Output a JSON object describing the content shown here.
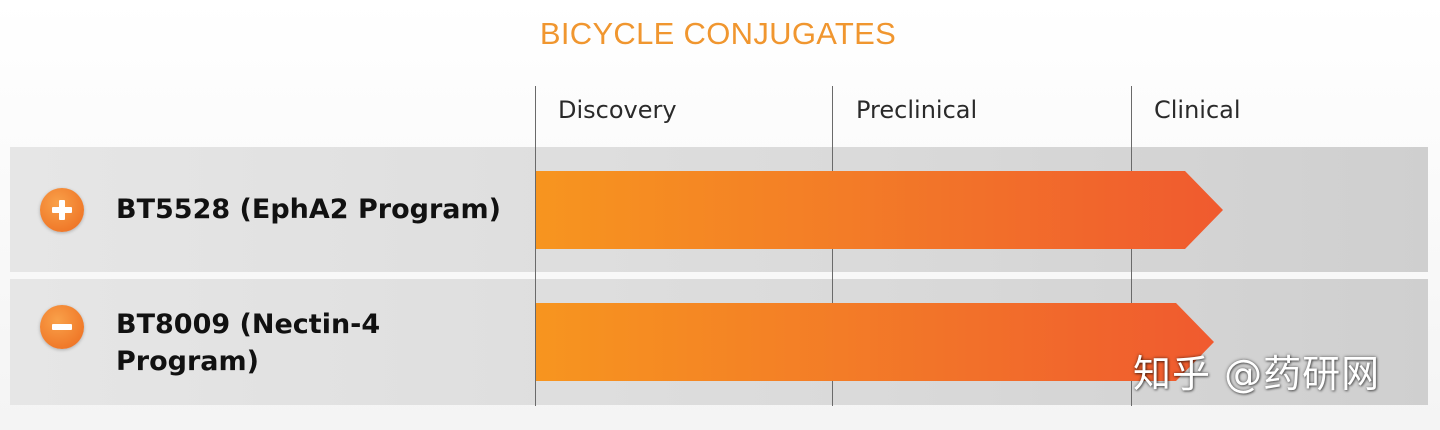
{
  "title": "BICYCLE CONJUGATES",
  "stages": [
    "Discovery",
    "Preclinical",
    "Clinical"
  ],
  "programs": [
    {
      "name": "BT5528 (EphA2 Program)",
      "name_lines": [
        "BT5528 (EphA2 Program)"
      ],
      "expanded": false,
      "toggle_icon": "plus-icon",
      "stage_reached": "Clinical",
      "progress_fraction": 0.77
    },
    {
      "name": "BT8009 (Nectin-4 Program)",
      "name_lines": [
        "BT8009 (Nectin-4",
        "Program)"
      ],
      "expanded": true,
      "toggle_icon": "minus-icon",
      "stage_reached": "Clinical",
      "progress_fraction": 0.76
    }
  ],
  "watermark": "知乎 @药研网",
  "colors": {
    "title": "#f0962f",
    "arrow_start": "#f7951f",
    "arrow_end": "#f05a2f",
    "toggle": "#f07a2a"
  }
}
